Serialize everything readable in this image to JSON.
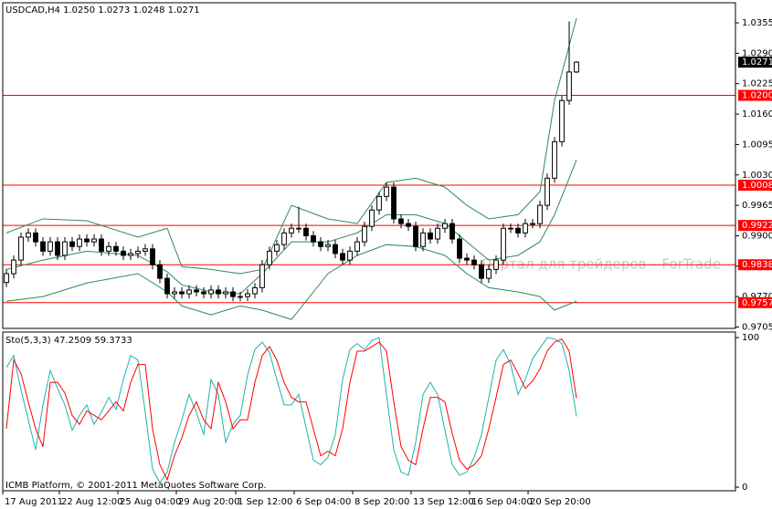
{
  "chart_data": [
    {
      "type": "candlestick",
      "title": "USDCAD,H4  1.0250 1.0273 1.0248 1.0271",
      "annotation": "Портал для трейдеров – ForTrade",
      "open": [
        0.98,
        0.9819,
        0.9848,
        0.9897,
        0.9906,
        0.9887,
        0.9867,
        0.9887,
        0.9858,
        0.9887,
        0.9877,
        0.9893,
        0.9887,
        0.9893,
        0.9867,
        0.9877,
        0.9867,
        0.9858,
        0.9862,
        0.9867,
        0.9872,
        0.9838,
        0.9809,
        0.9776,
        0.978,
        0.9776,
        0.9784,
        0.978,
        0.9776,
        0.9784,
        0.9776,
        0.978,
        0.977,
        0.977,
        0.9776,
        0.9789,
        0.9838,
        0.9867,
        0.9881,
        0.9906,
        0.9916,
        0.9916,
        0.99,
        0.9887,
        0.9877,
        0.9881,
        0.9862,
        0.9848,
        0.9867,
        0.9887,
        0.992,
        0.9955,
        0.9984,
        1.0004,
        0.9936,
        0.9926,
        0.992,
        0.9877,
        0.9906,
        0.9893,
        0.9916,
        0.9926,
        0.9893,
        0.9852,
        0.9848,
        0.9838,
        0.9809,
        0.9828,
        0.9848,
        0.9916,
        0.9916,
        0.9906,
        0.9926,
        0.9926,
        0.9965,
        1.0023,
        1.0101,
        1.0189,
        1.025
      ],
      "high": [
        0.9829,
        0.9858,
        0.9907,
        0.9916,
        0.9916,
        0.9897,
        0.9897,
        0.9897,
        0.9897,
        0.9897,
        0.9903,
        0.9903,
        0.9903,
        0.9903,
        0.9887,
        0.9887,
        0.9877,
        0.9872,
        0.9877,
        0.9882,
        0.9882,
        0.9848,
        0.9819,
        0.979,
        0.979,
        0.9794,
        0.9794,
        0.979,
        0.9794,
        0.9794,
        0.979,
        0.979,
        0.978,
        0.9786,
        0.9799,
        0.9848,
        0.9877,
        0.9891,
        0.9916,
        0.9926,
        0.9962,
        0.9926,
        0.991,
        0.9897,
        0.9891,
        0.9891,
        0.9872,
        0.9877,
        0.9897,
        0.993,
        0.9965,
        0.9994,
        1.0014,
        1.0014,
        0.9946,
        0.9936,
        0.993,
        0.9916,
        0.9916,
        0.9926,
        0.9936,
        0.9936,
        0.9903,
        0.9862,
        0.9858,
        0.9848,
        0.9838,
        0.9858,
        0.9926,
        0.9926,
        0.9926,
        0.9936,
        0.9936,
        0.9975,
        1.0033,
        1.0111,
        1.0199,
        1.0358,
        1.0273
      ],
      "low": [
        0.979,
        0.9809,
        0.9838,
        0.9887,
        0.9877,
        0.9857,
        0.9857,
        0.9848,
        0.9848,
        0.9867,
        0.9867,
        0.9877,
        0.9877,
        0.9857,
        0.9857,
        0.9857,
        0.9848,
        0.9848,
        0.9852,
        0.9857,
        0.9828,
        0.9799,
        0.9766,
        0.9766,
        0.9766,
        0.9766,
        0.977,
        0.9766,
        0.9766,
        0.9766,
        0.9766,
        0.976,
        0.976,
        0.976,
        0.9766,
        0.9779,
        0.9828,
        0.9857,
        0.9871,
        0.9896,
        0.9906,
        0.989,
        0.9877,
        0.9867,
        0.9867,
        0.9852,
        0.9838,
        0.9838,
        0.9857,
        0.9877,
        0.991,
        0.9945,
        0.9974,
        0.9926,
        0.9916,
        0.991,
        0.9867,
        0.9867,
        0.9883,
        0.9883,
        0.9906,
        0.9883,
        0.9842,
        0.9838,
        0.9828,
        0.9799,
        0.9799,
        0.9818,
        0.9838,
        0.9906,
        0.9896,
        0.9896,
        0.9916,
        0.9916,
        0.9955,
        1.0013,
        1.0091,
        1.018,
        1.0248
      ],
      "close": [
        0.9819,
        0.9848,
        0.9897,
        0.9906,
        0.9887,
        0.9867,
        0.9887,
        0.9858,
        0.9887,
        0.9877,
        0.9893,
        0.9887,
        0.9893,
        0.9867,
        0.9877,
        0.9867,
        0.9858,
        0.9862,
        0.9867,
        0.9872,
        0.9838,
        0.9809,
        0.9776,
        0.978,
        0.9776,
        0.9784,
        0.978,
        0.9776,
        0.9784,
        0.9776,
        0.978,
        0.977,
        0.977,
        0.9776,
        0.9789,
        0.9838,
        0.9867,
        0.9881,
        0.9906,
        0.9916,
        0.9916,
        0.99,
        0.9887,
        0.9877,
        0.9881,
        0.9862,
        0.9848,
        0.9867,
        0.9887,
        0.992,
        0.9955,
        0.9984,
        1.0004,
        0.9936,
        0.9926,
        0.992,
        0.9877,
        0.9906,
        0.9893,
        0.9916,
        0.9926,
        0.9893,
        0.9852,
        0.9848,
        0.9838,
        0.9809,
        0.9828,
        0.9848,
        0.9916,
        0.9916,
        0.9906,
        0.9926,
        0.9926,
        0.9965,
        1.0023,
        1.0101,
        1.0189,
        1.025,
        1.0271
      ],
      "bull_color": "#ffffff",
      "bear_color": "#000000",
      "outline_color": "#000000",
      "bands": [
        {
          "color": "#2e8b57",
          "x": [
            0,
            5,
            11,
            18,
            22,
            24,
            28,
            32,
            35,
            39,
            44,
            48,
            52,
            56,
            60,
            63,
            66,
            70,
            73,
            75,
            78
          ],
          "values": [
            0.9906,
            0.9936,
            0.9932,
            0.9897,
            0.9916,
            0.9834,
            0.9828,
            0.9819,
            0.9828,
            0.9965,
            0.9936,
            0.9926,
            1.0014,
            1.0023,
            1.0004,
            0.9965,
            0.9936,
            0.9945,
            0.9994,
            1.0189,
            1.0365
          ]
        },
        {
          "color": "#2e8b57",
          "x": [
            0,
            5,
            11,
            18,
            22,
            24,
            28,
            32,
            35,
            39,
            44,
            48,
            52,
            56,
            60,
            63,
            66,
            70,
            73,
            75,
            78
          ],
          "values": [
            0.9828,
            0.9848,
            0.9867,
            0.9858,
            0.9823,
            0.9795,
            0.978,
            0.9776,
            0.9819,
            0.9887,
            0.9887,
            0.9906,
            0.9945,
            0.9945,
            0.9926,
            0.9887,
            0.9848,
            0.9858,
            0.9887,
            0.9945,
            1.0062
          ]
        },
        {
          "color": "#2e8b57",
          "x": [
            0,
            5,
            11,
            18,
            22,
            24,
            28,
            32,
            35,
            39,
            44,
            48,
            52,
            56,
            60,
            63,
            66,
            70,
            73,
            75,
            78
          ],
          "values": [
            0.976,
            0.977,
            0.9799,
            0.9819,
            0.978,
            0.975,
            0.9731,
            0.975,
            0.9741,
            0.9721,
            0.9819,
            0.9858,
            0.9881,
            0.9877,
            0.9858,
            0.9819,
            0.9789,
            0.978,
            0.977,
            0.9741,
            0.976
          ]
        }
      ],
      "levels": [
        {
          "value": 1.02,
          "label": "1.0200"
        },
        {
          "value": 1.0008,
          "label": "1.0008"
        },
        {
          "value": 0.9922,
          "label": "0.9922"
        },
        {
          "value": 0.9838,
          "label": "0.9838"
        },
        {
          "value": 0.9757,
          "label": "0.9757"
        }
      ],
      "level_color": "#ff0000",
      "last_price": {
        "value": 1.0271,
        "label": "1.0271"
      },
      "last_price_color": "#000000",
      "xlim": [
        -0.5,
        99.75
      ],
      "xticks": [
        {
          "value": -0.5,
          "label": "17 Aug 2011"
        },
        {
          "value": 7.25,
          "label": "22 Aug 12:00"
        },
        {
          "value": 15.25,
          "label": "25 Aug 04:00"
        },
        {
          "value": 23.25,
          "label": "29 Aug 20:00"
        },
        {
          "value": 31.375,
          "label": "1 Sep 12:00"
        },
        {
          "value": 39.375,
          "label": "6 Sep 04:00"
        },
        {
          "value": 47.375,
          "label": "8 Sep 20:00"
        },
        {
          "value": 55.375,
          "label": "13 Sep 12:00"
        },
        {
          "value": 63.375,
          "label": "16 Sep 04:00"
        },
        {
          "value": 71.375,
          "label": "20 Sep 20:00"
        }
      ],
      "ylim": [
        0.9702,
        1.0398
      ],
      "yticks": [
        {
          "value": 0.9705,
          "label": "0.9705"
        },
        {
          "value": 0.977,
          "label": "0.9770"
        },
        {
          "value": 0.9835,
          "label": "0.9835"
        },
        {
          "value": 0.99,
          "label": "0.9900"
        },
        {
          "value": 0.9965,
          "label": "0.9965"
        },
        {
          "value": 1.003,
          "label": "1.0030"
        },
        {
          "value": 1.0095,
          "label": "1.0095"
        },
        {
          "value": 1.016,
          "label": "1.0160"
        },
        {
          "value": 1.0225,
          "label": "1.0225"
        },
        {
          "value": 1.029,
          "label": "1.0290"
        },
        {
          "value": 1.0355,
          "label": "1.0355"
        }
      ],
      "grid": false
    },
    {
      "type": "line",
      "title": "Sto(5,3,3) 47.2509 59.3733",
      "annotation": "ICMB Platform, © 2001-2011 MetaQuotes Software Corp.",
      "series": [
        {
          "color": "#20b2aa",
          "values": [
            80,
            88,
            65,
            45,
            25,
            55,
            78,
            66,
            55,
            38,
            48,
            55,
            42,
            50,
            60,
            52,
            72,
            88,
            85,
            50,
            12,
            3,
            10,
            30,
            45,
            62,
            50,
            35,
            72,
            62,
            30,
            42,
            48,
            75,
            92,
            97,
            90,
            72,
            55,
            55,
            62,
            40,
            18,
            15,
            20,
            35,
            72,
            92,
            96,
            92,
            98,
            100,
            62,
            25,
            10,
            8,
            30,
            62,
            70,
            62,
            38,
            15,
            8,
            10,
            20,
            35,
            60,
            85,
            92,
            82,
            62,
            72,
            86,
            93,
            100,
            99,
            96,
            78,
            47.2509
          ]
        },
        {
          "color": "#ff0000",
          "values": [
            39,
            85,
            76,
            57,
            39,
            27,
            70,
            70,
            63,
            48,
            42,
            51,
            48,
            45,
            51,
            57,
            51,
            70,
            82,
            82,
            39,
            15,
            5,
            21,
            33,
            48,
            57,
            45,
            39,
            70,
            57,
            39,
            45,
            45,
            70,
            88,
            94,
            85,
            70,
            60,
            57,
            57,
            39,
            21,
            24,
            21,
            39,
            70,
            91,
            91,
            94,
            97,
            91,
            57,
            27,
            18,
            15,
            39,
            60,
            60,
            57,
            36,
            18,
            12,
            15,
            21,
            39,
            60,
            82,
            85,
            76,
            66,
            71,
            79,
            91,
            97,
            99,
            91,
            59.3733
          ]
        }
      ],
      "ylim": [
        -2.4,
        103.7
      ],
      "yticks": [
        0,
        100
      ],
      "grid": false
    }
  ]
}
